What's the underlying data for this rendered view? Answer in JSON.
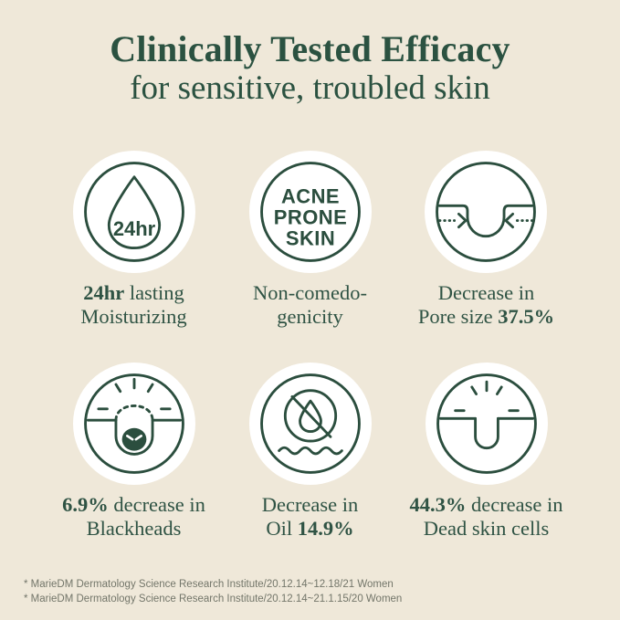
{
  "page": {
    "background_color": "#efe8d9",
    "accent_green": "#2b5241",
    "icon_green": "#2b4e3e",
    "footnote_color": "#73766a"
  },
  "header": {
    "title": "Clinically Tested Efficacy",
    "subtitle": "for sensitive, troubled skin"
  },
  "features": [
    {
      "name": "moisturizing",
      "icon": "water-drop-24hr-icon",
      "icon_label": "24hr",
      "caption": [
        [
          {
            "text": "24hr",
            "bold": true
          },
          {
            "text": " lasting",
            "bold": false
          }
        ],
        [
          {
            "text": "Moisturizing",
            "bold": false
          }
        ]
      ]
    },
    {
      "name": "non-comedogenicity",
      "icon": "acne-prone-skin-icon",
      "icon_lines": [
        "ACNE",
        "PRONE",
        "SKIN"
      ],
      "caption": [
        [
          {
            "text": "Non-comedo-",
            "bold": false
          }
        ],
        [
          {
            "text": "genicity",
            "bold": false
          }
        ]
      ]
    },
    {
      "name": "pore-size",
      "icon": "pore-shrink-icon",
      "caption": [
        [
          {
            "text": "Decrease in",
            "bold": false
          }
        ],
        [
          {
            "text": "Pore size ",
            "bold": false
          },
          {
            "text": "37.5%",
            "bold": true
          }
        ]
      ]
    },
    {
      "name": "blackheads",
      "icon": "blackhead-icon",
      "caption": [
        [
          {
            "text": "6.9%",
            "bold": true
          },
          {
            "text": " decrease in",
            "bold": false
          }
        ],
        [
          {
            "text": "Blackheads",
            "bold": false
          }
        ]
      ]
    },
    {
      "name": "oil",
      "icon": "no-oil-drop-icon",
      "caption": [
        [
          {
            "text": "Decrease in",
            "bold": false
          }
        ],
        [
          {
            "text": "Oil ",
            "bold": false
          },
          {
            "text": "14.9%",
            "bold": true
          }
        ]
      ]
    },
    {
      "name": "dead-skin-cells",
      "icon": "pore-rays-icon",
      "caption": [
        [
          {
            "text": "44.3%",
            "bold": true
          },
          {
            "text": " decrease in",
            "bold": false
          }
        ],
        [
          {
            "text": "Dead skin cells",
            "bold": false
          }
        ]
      ]
    }
  ],
  "footnotes": [
    "* MarieDM Dermatology Science Research Institute/20.12.14~12.18/21 Women",
    "* MarieDM Dermatology Science Research Institute/20.12.14~21.1.15/20 Women"
  ]
}
